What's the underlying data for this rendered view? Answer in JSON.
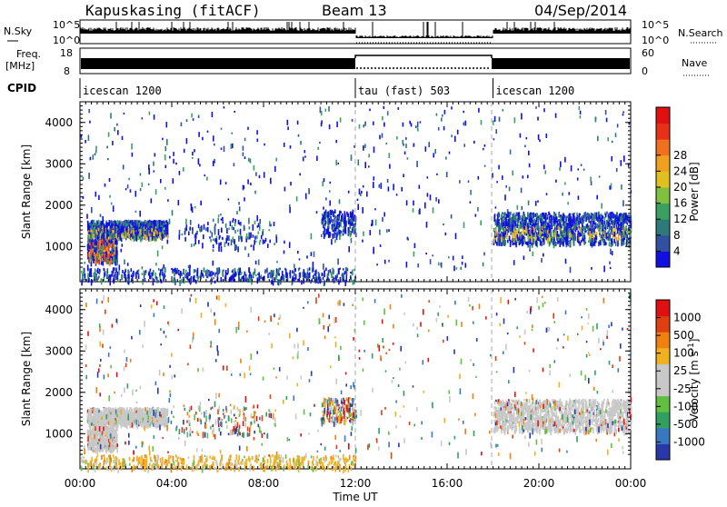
{
  "header": {
    "station": "Kapuskasing (fitACF)",
    "beam": "Beam 13",
    "date": "04/Sep/2014"
  },
  "top_panels": {
    "nsky_label": "N.Sky",
    "nsky_ticks": [
      "10^5",
      "10^0"
    ],
    "nsearch_label": "N.Search",
    "nsearch_ticks": [
      "10^5",
      "10^0"
    ],
    "freq_label": "Freq.",
    "freq_unit": "[MHz]",
    "freq_ticks": [
      "18",
      "8"
    ],
    "nave_label": "Nave",
    "nave_ticks": [
      "60",
      "0"
    ],
    "cpid_label": "CPID",
    "cpid_segments": [
      {
        "label": "icescan 1200",
        "start_hour": 0,
        "end_hour": 12
      },
      {
        "label": "tau (fast) 503",
        "start_hour": 12,
        "end_hour": 18
      },
      {
        "label": "icescan 1200",
        "start_hour": 18,
        "end_hour": 24
      }
    ]
  },
  "chart_data": [
    {
      "type": "heatmap",
      "name": "power-panel",
      "xlabel": "Time UT",
      "ylabel": "Slant Range [km]",
      "xlim": [
        0,
        24
      ],
      "ylim": [
        150,
        4500
      ],
      "x_ticks": [
        "00:00",
        "04:00",
        "08:00",
        "12:00",
        "16:00",
        "20:00",
        "00:00"
      ],
      "y_ticks": [
        1000,
        2000,
        3000,
        4000
      ],
      "colorbar_label": "Power [dB]",
      "colorbar_ticks": [
        "4",
        "8",
        "12",
        "16",
        "20",
        "24",
        "28"
      ],
      "colorbar_colors": [
        "#1010e0",
        "#3050a0",
        "#2e7a7a",
        "#3aa060",
        "#80c040",
        "#e0c020",
        "#f0a020",
        "#f07020",
        "#e83018",
        "#e01010"
      ],
      "scatter_regions": [
        {
          "x": [
            0.3,
            3.8
          ],
          "y": [
            1250,
            1650
          ],
          "level": "strong"
        },
        {
          "x": [
            0.3,
            1.6
          ],
          "y": [
            650,
            1200
          ],
          "level": "strong"
        },
        {
          "x": [
            18.0,
            24.0
          ],
          "y": [
            1100,
            1850
          ],
          "level": "medium"
        },
        {
          "x": [
            10.5,
            12.0
          ],
          "y": [
            1300,
            1900
          ],
          "level": "weak"
        },
        {
          "x": [
            0,
            12
          ],
          "y": [
            180,
            500
          ],
          "level": "weak"
        }
      ]
    },
    {
      "type": "heatmap",
      "name": "velocity-panel",
      "xlabel": "Time UT",
      "ylabel": "Slant Range [km]",
      "xlim": [
        0,
        24
      ],
      "ylim": [
        150,
        4500
      ],
      "x_ticks": [
        "00:00",
        "04:00",
        "08:00",
        "12:00",
        "16:00",
        "20:00",
        "00:00"
      ],
      "y_ticks": [
        1000,
        2000,
        3000,
        4000
      ],
      "colorbar_label": "Velocity [m s^-1]",
      "colorbar_ticks": [
        "1000",
        "500",
        "100",
        "25",
        "-25",
        "-100",
        "-500",
        "-1000"
      ],
      "colorbar_colors": [
        "#2838a8",
        "#3878c0",
        "#30a060",
        "#60c040",
        "#c8c8c8",
        "#c8c8c8",
        "#f0b020",
        "#f08010",
        "#e04010",
        "#e01010"
      ]
    }
  ],
  "x_axis_title": "Time UT",
  "x_tick_labels": [
    "00:00",
    "04:00",
    "08:00",
    "12:00",
    "16:00",
    "20:00",
    "00:00"
  ]
}
